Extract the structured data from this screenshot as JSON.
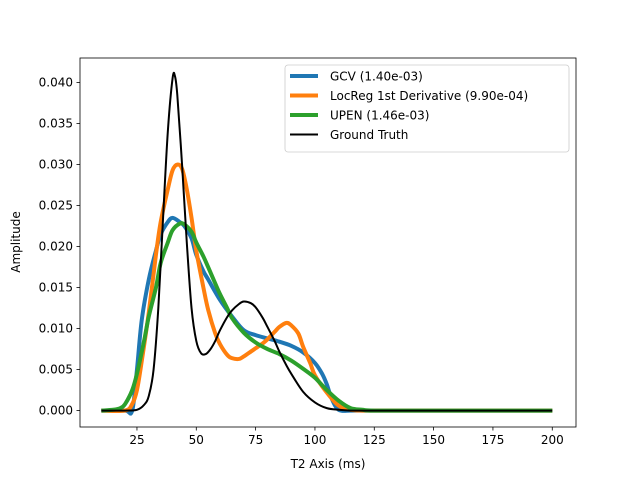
{
  "chart_data": {
    "type": "line",
    "title": "",
    "xlabel": "T2 Axis (ms)",
    "ylabel": "Amplitude",
    "xlim": [
      1,
      210
    ],
    "ylim": [
      -0.002,
      0.043
    ],
    "xticks": [
      25,
      50,
      75,
      100,
      125,
      150,
      175,
      200
    ],
    "yticks": [
      0.0,
      0.005,
      0.01,
      0.015,
      0.02,
      0.025,
      0.03,
      0.035,
      0.04
    ],
    "ytick_labels": [
      "0.000",
      "0.005",
      "0.010",
      "0.015",
      "0.020",
      "0.025",
      "0.030",
      "0.035",
      "0.040"
    ],
    "grid": false,
    "legend_position": "upper right",
    "series": [
      {
        "name": "GCV  (1.40e-03)",
        "color": "#1f77b4",
        "x": [
          10,
          20,
          23,
          25,
          27,
          30,
          33,
          35,
          38,
          40,
          43,
          45,
          48,
          50,
          53,
          55,
          60,
          65,
          70,
          75,
          80,
          85,
          90,
          95,
          100,
          103,
          105,
          107,
          110,
          115,
          120,
          125,
          150,
          175,
          200
        ],
        "y": [
          0.0,
          0.0,
          0.0,
          0.005,
          0.011,
          0.016,
          0.0195,
          0.0215,
          0.023,
          0.0235,
          0.023,
          0.0225,
          0.021,
          0.019,
          0.017,
          0.016,
          0.0135,
          0.0115,
          0.0098,
          0.0092,
          0.0088,
          0.0084,
          0.0079,
          0.0071,
          0.0058,
          0.0045,
          0.0032,
          0.0015,
          0.0001,
          0.0,
          0.0,
          0.0,
          0.0,
          0.0,
          0.0
        ]
      },
      {
        "name": "LocReg  1st Derivative (9.90e-04)",
        "color": "#ff7f0e",
        "x": [
          10,
          20,
          23,
          25,
          27,
          30,
          33,
          35,
          38,
          40,
          42,
          44,
          46,
          48,
          50,
          53,
          55,
          58,
          60,
          63,
          65,
          68,
          70,
          73,
          75,
          78,
          80,
          83,
          85,
          88,
          90,
          93,
          95,
          98,
          100,
          105,
          110,
          115,
          120,
          125,
          150,
          175,
          200
        ],
        "y": [
          0.0,
          0.0,
          0.0008,
          0.0025,
          0.006,
          0.012,
          0.019,
          0.023,
          0.027,
          0.0293,
          0.03,
          0.0295,
          0.027,
          0.0235,
          0.0195,
          0.015,
          0.0123,
          0.0094,
          0.0081,
          0.0068,
          0.0064,
          0.0063,
          0.0066,
          0.0072,
          0.0076,
          0.0082,
          0.0087,
          0.0096,
          0.0102,
          0.0107,
          0.0104,
          0.0094,
          0.0078,
          0.0058,
          0.0043,
          0.0022,
          0.0006,
          0.0001,
          0.0,
          0.0,
          0.0,
          0.0,
          0.0
        ]
      },
      {
        "name": "UPEN  (1.46e-03)",
        "color": "#2ca02c",
        "x": [
          10,
          15,
          18,
          20,
          23,
          25,
          28,
          30,
          33,
          35,
          38,
          40,
          43,
          45,
          48,
          50,
          53,
          55,
          58,
          60,
          63,
          65,
          70,
          75,
          80,
          85,
          90,
          95,
          100,
          105,
          110,
          115,
          120,
          125,
          150,
          175,
          200
        ],
        "y": [
          0.0,
          0.0001,
          0.0003,
          0.0008,
          0.0025,
          0.0045,
          0.0085,
          0.0115,
          0.015,
          0.018,
          0.0205,
          0.022,
          0.0228,
          0.0227,
          0.0218,
          0.0205,
          0.0188,
          0.0175,
          0.0155,
          0.0142,
          0.0125,
          0.0113,
          0.0095,
          0.0083,
          0.0075,
          0.0069,
          0.0061,
          0.0051,
          0.004,
          0.0025,
          0.0012,
          0.0003,
          0.0001,
          0.0,
          0.0,
          0.0,
          0.0
        ]
      },
      {
        "name": "Ground Truth",
        "color": "#000000",
        "x": [
          10,
          20,
          25,
          28,
          30,
          32,
          34,
          36,
          38,
          40,
          41,
          42,
          44,
          46,
          48,
          50,
          52,
          54,
          56,
          58,
          60,
          63,
          65,
          68,
          70,
          73,
          75,
          78,
          80,
          83,
          85,
          88,
          90,
          95,
          100,
          105,
          110,
          115,
          120,
          125,
          150,
          175,
          200
        ],
        "y": [
          0.0,
          0.0,
          0.0001,
          0.0007,
          0.0018,
          0.005,
          0.0125,
          0.0235,
          0.034,
          0.0405,
          0.0408,
          0.0385,
          0.03,
          0.0205,
          0.0125,
          0.0085,
          0.007,
          0.0069,
          0.0075,
          0.0085,
          0.0098,
          0.0114,
          0.0122,
          0.013,
          0.0133,
          0.0131,
          0.0126,
          0.0113,
          0.0102,
          0.0085,
          0.0072,
          0.0055,
          0.0045,
          0.0023,
          0.001,
          0.0003,
          0.0001,
          0.0,
          0.0,
          0.0,
          0.0,
          0.0,
          0.0
        ]
      }
    ]
  }
}
